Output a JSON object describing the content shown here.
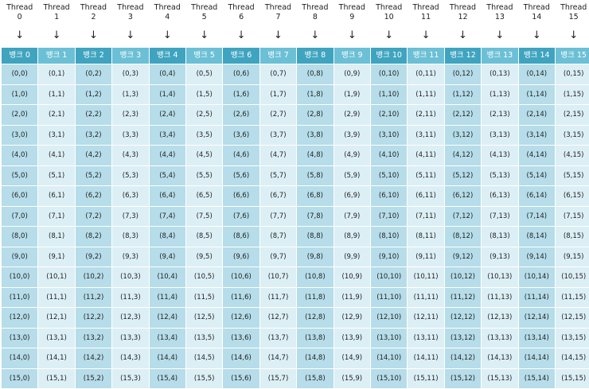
{
  "threads": [
    {
      "word": "Thread",
      "num": "0"
    },
    {
      "word": "Thread",
      "num": "1"
    },
    {
      "word": "Thread",
      "num": "2"
    },
    {
      "word": "Thread",
      "num": "3"
    },
    {
      "word": "Thread",
      "num": "4"
    },
    {
      "word": "Thread",
      "num": "5"
    },
    {
      "word": "Thread",
      "num": "6"
    },
    {
      "word": "Thread",
      "num": "7"
    },
    {
      "word": "Thread",
      "num": "8"
    },
    {
      "word": "Thread",
      "num": "9"
    },
    {
      "word": "Thread",
      "num": "10"
    },
    {
      "word": "Thread",
      "num": "11"
    },
    {
      "word": "Thread",
      "num": "12"
    },
    {
      "word": "Thread",
      "num": "13"
    },
    {
      "word": "Thread",
      "num": "14"
    },
    {
      "word": "Thread",
      "num": "15"
    }
  ],
  "arrow": "↓",
  "banks": [
    "뱅크 0",
    "뱅크 1",
    "뱅크 2",
    "뱅크 3",
    "뱅크 4",
    "뱅크 5",
    "뱅크 6",
    "뱅크 7",
    "뱅크 8",
    "뱅크 9",
    "뱅크 10",
    "뱅크 11",
    "뱅크 12",
    "뱅크 13",
    "뱅크 14",
    "뱅크 15"
  ],
  "cells": [
    [
      "(0,0)",
      "(0,1)",
      "(0,2)",
      "(0,3)",
      "(0,4)",
      "(0,5)",
      "(0,6)",
      "(0,7)",
      "(0,8)",
      "(0,9)",
      "(0,10)",
      "(0,11)",
      "(0,12)",
      "(0,13)",
      "(0,14)",
      "(0,15)"
    ],
    [
      "(1,0)",
      "(1,1)",
      "(1,2)",
      "(1,3)",
      "(1,4)",
      "(1,5)",
      "(1,6)",
      "(1,7)",
      "(1,8)",
      "(1,9)",
      "(1,10)",
      "(1,11)",
      "(1,12)",
      "(1,13)",
      "(1,14)",
      "(1,15)"
    ],
    [
      "(2,0)",
      "(2,1)",
      "(2,2)",
      "(2,3)",
      "(2,4)",
      "(2,5)",
      "(2,6)",
      "(2,7)",
      "(2,8)",
      "(2,9)",
      "(2,10)",
      "(2,11)",
      "(2,12)",
      "(2,13)",
      "(2,14)",
      "(2,15)"
    ],
    [
      "(3,0)",
      "(3,1)",
      "(3,2)",
      "(3,3)",
      "(3,4)",
      "(3,5)",
      "(3,6)",
      "(3,7)",
      "(3,8)",
      "(3,9)",
      "(3,10)",
      "(3,11)",
      "(3,12)",
      "(3,13)",
      "(3,14)",
      "(3,15)"
    ],
    [
      "(4,0)",
      "(4,1)",
      "(4,2)",
      "(4,3)",
      "(4,4)",
      "(4,5)",
      "(4,6)",
      "(4,7)",
      "(4,8)",
      "(4,9)",
      "(4,10)",
      "(4,11)",
      "(4,12)",
      "(4,13)",
      "(4,14)",
      "(4,15)"
    ],
    [
      "(5,0)",
      "(5,1)",
      "(5,2)",
      "(5,3)",
      "(5,4)",
      "(5,5)",
      "(5,6)",
      "(5,7)",
      "(5,8)",
      "(5,9)",
      "(5,10)",
      "(5,11)",
      "(5,12)",
      "(5,13)",
      "(5,14)",
      "(5,15)"
    ],
    [
      "(6,0)",
      "(6,1)",
      "(6,2)",
      "(6,3)",
      "(6,4)",
      "(6,5)",
      "(6,6)",
      "(6,7)",
      "(6,8)",
      "(6,9)",
      "(6,10)",
      "(6,11)",
      "(6,12)",
      "(6,13)",
      "(6,14)",
      "(6,15)"
    ],
    [
      "(7,0)",
      "(7,1)",
      "(7,2)",
      "(7,3)",
      "(7,4)",
      "(7,5)",
      "(7,6)",
      "(7,7)",
      "(7,8)",
      "(7,9)",
      "(7,10)",
      "(7,11)",
      "(7,12)",
      "(7,13)",
      "(7,14)",
      "(7,15)"
    ],
    [
      "(8,0)",
      "(8,1)",
      "(8,2)",
      "(8,3)",
      "(8,4)",
      "(8,5)",
      "(8,6)",
      "(8,7)",
      "(8,8)",
      "(8,9)",
      "(8,10)",
      "(8,11)",
      "(8,12)",
      "(8,13)",
      "(8,14)",
      "(8,15)"
    ],
    [
      "(9,0)",
      "(9,1)",
      "(9,2)",
      "(9,3)",
      "(9,4)",
      "(9,5)",
      "(9,6)",
      "(9,7)",
      "(9,8)",
      "(9,9)",
      "(9,10)",
      "(9,11)",
      "(9,12)",
      "(9,13)",
      "(9,14)",
      "(9,15)"
    ],
    [
      "(10,0)",
      "(10,1)",
      "(10,2)",
      "(10,3)",
      "(10,4)",
      "(10,5)",
      "(10,6)",
      "(10,7)",
      "(10,8)",
      "(10,9)",
      "(10,10)",
      "(10,11)",
      "(10,12)",
      "(10,13)",
      "(10,14)",
      "(10,15)"
    ],
    [
      "(11,0)",
      "(11,1)",
      "(11,2)",
      "(11,3)",
      "(11,4)",
      "(11,5)",
      "(11,6)",
      "(11,7)",
      "(11,8)",
      "(11,9)",
      "(11,10)",
      "(11,11)",
      "(11,12)",
      "(11,13)",
      "(11,14)",
      "(11,15)"
    ],
    [
      "(12,0)",
      "(12,1)",
      "(12,2)",
      "(12,3)",
      "(12,4)",
      "(12,5)",
      "(12,6)",
      "(12,7)",
      "(12,8)",
      "(12,9)",
      "(12,10)",
      "(12,11)",
      "(12,12)",
      "(12,13)",
      "(12,14)",
      "(12,15)"
    ],
    [
      "(13,0)",
      "(13,1)",
      "(13,2)",
      "(13,3)",
      "(13,4)",
      "(13,5)",
      "(13,6)",
      "(13,7)",
      "(13,8)",
      "(13,9)",
      "(13,10)",
      "(13,11)",
      "(13,12)",
      "(13,13)",
      "(13,14)",
      "(13,15)"
    ],
    [
      "(14,0)",
      "(14,1)",
      "(14,2)",
      "(14,3)",
      "(14,4)",
      "(14,5)",
      "(14,6)",
      "(14,7)",
      "(14,8)",
      "(14,9)",
      "(14,10)",
      "(14,11)",
      "(14,12)",
      "(14,13)",
      "(14,14)",
      "(14,15)"
    ],
    [
      "(15,0)",
      "(15,1)",
      "(15,2)",
      "(15,3)",
      "(15,4)",
      "(15,5)",
      "(15,6)",
      "(15,7)",
      "(15,8)",
      "(15,9)",
      "(15,10)",
      "(15,11)",
      "(15,12)",
      "(15,13)",
      "(15,14)",
      "(15,15)"
    ]
  ],
  "colors": {
    "bank_header_even": "#3FA4BF",
    "bank_header_odd": "#6CC0D5",
    "column_even": "#B6DDE9",
    "column_odd": "#DCEFF5",
    "text": "#222222"
  }
}
